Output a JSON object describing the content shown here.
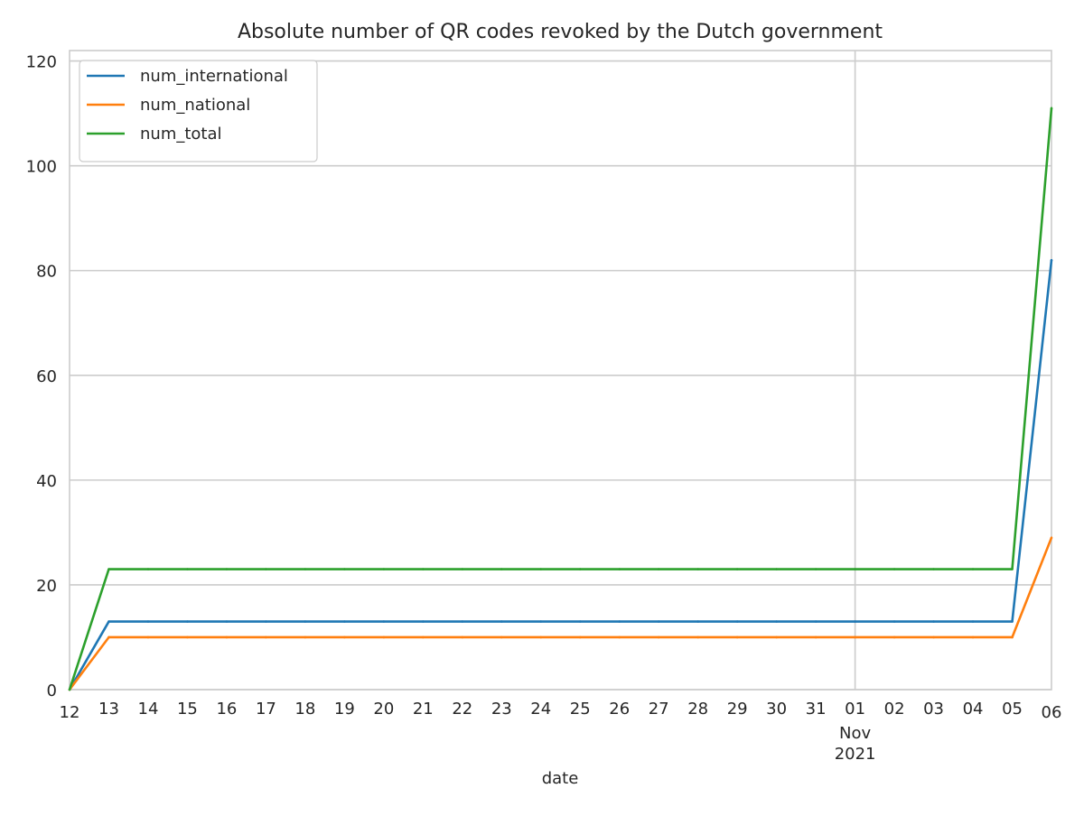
{
  "chart_data": {
    "type": "line",
    "title": "Absolute number of QR codes revoked by the Dutch government",
    "xlabel": "date",
    "ylabel": "",
    "x": [
      "12",
      "13",
      "14",
      "15",
      "16",
      "17",
      "18",
      "19",
      "20",
      "21",
      "22",
      "23",
      "24",
      "25",
      "26",
      "27",
      "28",
      "29",
      "30",
      "31",
      "01",
      "02",
      "03",
      "04",
      "05",
      "06"
    ],
    "x_dates": [
      "2021-10-12",
      "2021-10-13",
      "2021-10-14",
      "2021-10-15",
      "2021-10-16",
      "2021-10-17",
      "2021-10-18",
      "2021-10-19",
      "2021-10-20",
      "2021-10-21",
      "2021-10-22",
      "2021-10-23",
      "2021-10-24",
      "2021-10-25",
      "2021-10-26",
      "2021-10-27",
      "2021-10-28",
      "2021-10-29",
      "2021-10-30",
      "2021-10-31",
      "2021-11-01",
      "2021-11-02",
      "2021-11-03",
      "2021-11-04",
      "2021-11-05",
      "2021-11-06"
    ],
    "x_major_label": {
      "at": "01",
      "lines": [
        "Nov",
        "2021"
      ]
    },
    "yticks": [
      0,
      20,
      40,
      60,
      80,
      100,
      120
    ],
    "ylim": [
      0,
      122
    ],
    "grid": true,
    "legend_position": "top-left",
    "series": [
      {
        "name": "num_international",
        "color": "#1f77b4",
        "values": [
          0,
          13,
          13,
          13,
          13,
          13,
          13,
          13,
          13,
          13,
          13,
          13,
          13,
          13,
          13,
          13,
          13,
          13,
          13,
          13,
          13,
          13,
          13,
          13,
          13,
          82
        ]
      },
      {
        "name": "num_national",
        "color": "#ff7f0e",
        "values": [
          0,
          10,
          10,
          10,
          10,
          10,
          10,
          10,
          10,
          10,
          10,
          10,
          10,
          10,
          10,
          10,
          10,
          10,
          10,
          10,
          10,
          10,
          10,
          10,
          10,
          29
        ]
      },
      {
        "name": "num_total",
        "color": "#2ca02c",
        "values": [
          0,
          23,
          23,
          23,
          23,
          23,
          23,
          23,
          23,
          23,
          23,
          23,
          23,
          23,
          23,
          23,
          23,
          23,
          23,
          23,
          23,
          23,
          23,
          23,
          23,
          111
        ]
      }
    ]
  }
}
